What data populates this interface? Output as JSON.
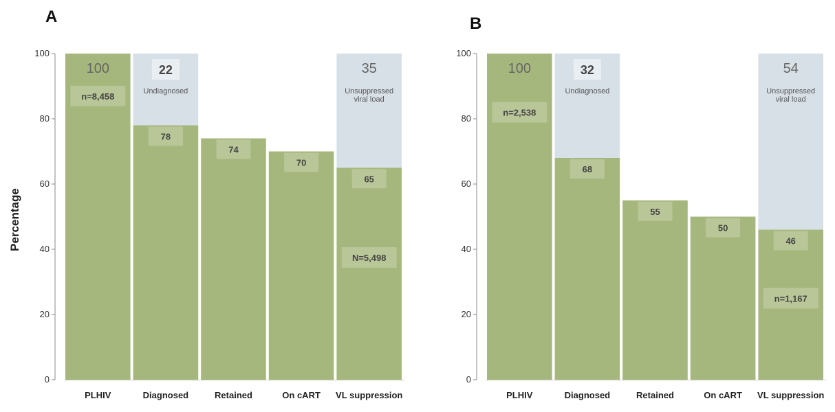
{
  "y_axis_label": "Percentage",
  "colors": {
    "bar": "#a6b77d",
    "gap": "#d8e0e7",
    "label_box": "#b9c698",
    "top_box": "#e9eef2",
    "axis": "#888888"
  },
  "chart_data": [
    {
      "type": "bar",
      "panel_label": "A",
      "categories": [
        "PLHIV",
        "Diagnosed",
        "Retained",
        "On cART",
        "VL suppression"
      ],
      "values": [
        100,
        78,
        74,
        70,
        65
      ],
      "bar_value_labels": [
        "100",
        "78",
        "74",
        "70",
        "65"
      ],
      "gap_annotations": [
        {
          "category": "Diagnosed",
          "value": "22",
          "label": "Undiagnosed"
        },
        {
          "category": "VL suppression",
          "value": "35",
          "label": "Unsuppressed viral load"
        }
      ],
      "n_labels": [
        {
          "category": "PLHIV",
          "text": "n=8,458"
        },
        {
          "category": "VL suppression",
          "text": "N=5,498"
        }
      ],
      "ylabel": "Percentage",
      "ylim": [
        0,
        100
      ],
      "yticks": [
        0,
        20,
        40,
        60,
        80,
        100
      ]
    },
    {
      "type": "bar",
      "panel_label": "B",
      "categories": [
        "PLHIV",
        "Diagnosed",
        "Retained",
        "On cART",
        "VL suppression"
      ],
      "values": [
        100,
        68,
        55,
        50,
        46
      ],
      "bar_value_labels": [
        "100",
        "68",
        "55",
        "50",
        "46"
      ],
      "gap_annotations": [
        {
          "category": "Diagnosed",
          "value": "32",
          "label": "Undiagnosed"
        },
        {
          "category": "VL suppression",
          "value": "54",
          "label": "Unsuppressed viral load"
        }
      ],
      "n_labels": [
        {
          "category": "PLHIV",
          "text": "n=2,538"
        },
        {
          "category": "VL suppression",
          "text": "n=1,167"
        }
      ],
      "ylabel": "",
      "ylim": [
        0,
        100
      ],
      "yticks": [
        0,
        20,
        40,
        60,
        80,
        100
      ]
    }
  ]
}
